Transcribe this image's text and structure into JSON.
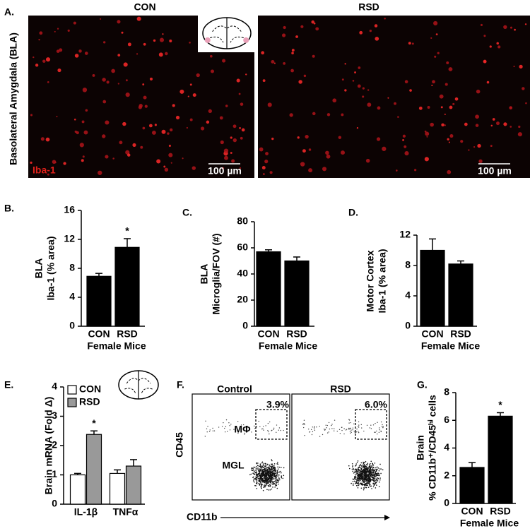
{
  "panel_a": {
    "label": "A.",
    "con_title": "CON",
    "rsd_title": "RSD",
    "region": "Basolateral Amygdala (BLA)",
    "stain": "Iba-1",
    "scale_left": "100 µm",
    "scale_right": "100 µm"
  },
  "panel_f": {
    "label": "F.",
    "left_title": "Control",
    "right_title": "RSD",
    "left_gate": "3.9%",
    "right_gate": "6.0%",
    "gate_name": "MΦ",
    "cluster_name": "MGL",
    "y_axis": "CD45",
    "x_axis": "CD11b"
  },
  "chart_data": [
    {
      "type": "bar",
      "panel": "B.",
      "ylabel": [
        "BLA",
        "Iba-1 (% area)"
      ],
      "xlabel": "Female Mice",
      "categories": [
        "CON",
        "RSD"
      ],
      "values": [
        6.9,
        10.9
      ],
      "errors": [
        0.4,
        1.2
      ],
      "significance": [
        null,
        "*"
      ],
      "color": "#000000",
      "ylim": [
        0,
        16
      ],
      "yticks": [
        0,
        4,
        8,
        12,
        16
      ]
    },
    {
      "type": "bar",
      "panel": "C.",
      "ylabel": [
        "BLA",
        "Microglia/FOV (#)"
      ],
      "xlabel": "Female Mice",
      "categories": [
        "CON",
        "RSD"
      ],
      "values": [
        57,
        50
      ],
      "errors": [
        1.5,
        3
      ],
      "significance": [
        null,
        null
      ],
      "color": "#000000",
      "ylim": [
        0,
        80
      ],
      "yticks": [
        0,
        20,
        40,
        60,
        80
      ]
    },
    {
      "type": "bar",
      "panel": "D.",
      "ylabel": [
        "Motor Cortex",
        "Iba-1 (% area)"
      ],
      "xlabel": "Female Mice",
      "categories": [
        "CON",
        "RSD"
      ],
      "values": [
        10,
        8.2
      ],
      "errors": [
        1.5,
        0.4
      ],
      "significance": [
        null,
        null
      ],
      "color": "#000000",
      "ylim": [
        0,
        12
      ],
      "yticks": [
        0,
        4,
        8,
        12
      ]
    },
    {
      "type": "bar",
      "panel": "E.",
      "ylabel": [
        "Brain mRNA  (Fold Δ)"
      ],
      "categories": [
        "IL-1β",
        "TNFα"
      ],
      "series": [
        {
          "name": "CON",
          "color": "#ffffff",
          "values": [
            1.0,
            1.05
          ],
          "errors": [
            0.05,
            0.12
          ],
          "significance": [
            null,
            null
          ]
        },
        {
          "name": "RSD",
          "color": "#999999",
          "values": [
            2.38,
            1.3
          ],
          "errors": [
            0.12,
            0.22
          ],
          "significance": [
            "*",
            null
          ]
        }
      ],
      "legend": "top-left",
      "ylim": [
        0,
        4
      ],
      "yticks": [
        0,
        1,
        2,
        3,
        4
      ]
    },
    {
      "type": "bar",
      "panel": "G.",
      "ylabel": [
        "Brain",
        "% CD11b⁺/CD45ʰⁱ cells"
      ],
      "xlabel": "Female Mice",
      "categories": [
        "CON",
        "RSD"
      ],
      "values": [
        2.6,
        6.3
      ],
      "errors": [
        0.35,
        0.25
      ],
      "significance": [
        null,
        "*"
      ],
      "color": "#000000",
      "ylim": [
        0,
        8
      ],
      "yticks": [
        0,
        2,
        4,
        6,
        8
      ]
    }
  ]
}
